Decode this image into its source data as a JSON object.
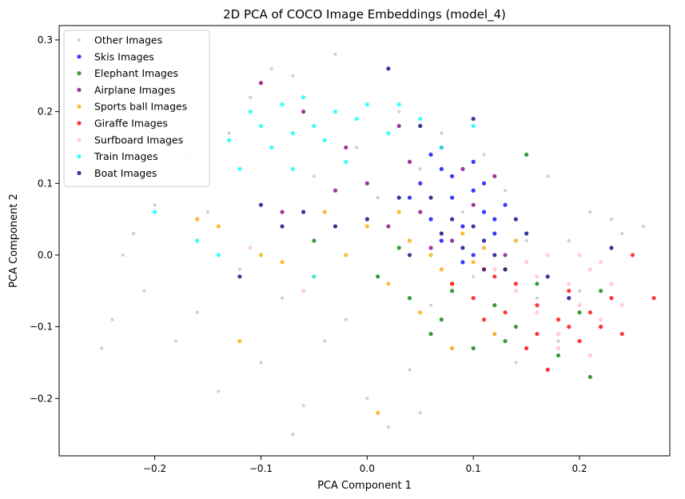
{
  "chart_data": {
    "type": "scatter",
    "title": "2D PCA of COCO Image Embeddings (model_4)",
    "xlabel": "PCA Component 1",
    "ylabel": "PCA Component 2",
    "xlim": [
      -0.29,
      0.285
    ],
    "ylim": [
      -0.28,
      0.32
    ],
    "x_ticks": [
      -0.2,
      -0.1,
      0.0,
      0.1,
      0.2
    ],
    "y_ticks": [
      -0.2,
      -0.1,
      0.0,
      0.1,
      0.2,
      0.3
    ],
    "x_tick_labels": [
      "−0.2",
      "−0.1",
      "0.0",
      "0.1",
      "0.2"
    ],
    "y_tick_labels": [
      "−0.2",
      "−0.1",
      "0.0",
      "0.1",
      "0.2",
      "0.3"
    ],
    "grid": false,
    "legend_position": "top-left",
    "series": [
      {
        "name": "Other Images",
        "color": "#a9a9a9",
        "points": [
          [
            -0.25,
            -0.13
          ],
          [
            -0.24,
            -0.09
          ],
          [
            -0.23,
            0.0
          ],
          [
            -0.22,
            0.03
          ],
          [
            -0.21,
            -0.05
          ],
          [
            -0.2,
            0.07
          ],
          [
            -0.19,
            0.11
          ],
          [
            -0.18,
            -0.12
          ],
          [
            -0.17,
            0.14
          ],
          [
            -0.16,
            -0.08
          ],
          [
            -0.15,
            0.06
          ],
          [
            -0.14,
            -0.19
          ],
          [
            -0.13,
            0.17
          ],
          [
            -0.12,
            -0.02
          ],
          [
            -0.11,
            0.22
          ],
          [
            -0.1,
            -0.15
          ],
          [
            -0.09,
            0.26
          ],
          [
            -0.08,
            -0.06
          ],
          [
            -0.07,
            0.25
          ],
          [
            -0.06,
            -0.21
          ],
          [
            -0.05,
            0.11
          ],
          [
            -0.04,
            -0.12
          ],
          [
            -0.03,
            0.04
          ],
          [
            -0.02,
            -0.09
          ],
          [
            -0.01,
            0.15
          ],
          [
            0.0,
            -0.2
          ],
          [
            0.01,
            0.08
          ],
          [
            0.02,
            -0.24
          ],
          [
            0.03,
            0.2
          ],
          [
            0.04,
            -0.16
          ],
          [
            0.05,
            0.12
          ],
          [
            0.06,
            -0.07
          ],
          [
            0.07,
            0.17
          ],
          [
            0.08,
            -0.13
          ],
          [
            0.09,
            0.06
          ],
          [
            0.1,
            -0.03
          ],
          [
            0.11,
            0.14
          ],
          [
            0.12,
            -0.11
          ],
          [
            0.13,
            0.09
          ],
          [
            0.14,
            -0.15
          ],
          [
            0.15,
            0.02
          ],
          [
            0.16,
            -0.06
          ],
          [
            0.17,
            0.11
          ],
          [
            0.18,
            -0.12
          ],
          [
            0.19,
            0.02
          ],
          [
            0.2,
            -0.05
          ],
          [
            0.21,
            0.06
          ],
          [
            0.22,
            -0.1
          ],
          [
            0.23,
            0.05
          ],
          [
            0.24,
            0.03
          ],
          [
            0.26,
            0.04
          ],
          [
            -0.07,
            -0.25
          ],
          [
            -0.03,
            0.28
          ],
          [
            0.05,
            -0.22
          ]
        ]
      },
      {
        "name": "Skis Images",
        "color": "#0000ff",
        "points": [
          [
            0.05,
            0.1
          ],
          [
            0.06,
            0.05
          ],
          [
            0.07,
            0.02
          ],
          [
            0.08,
            0.08
          ],
          [
            0.09,
            0.04
          ],
          [
            0.1,
            0.0
          ],
          [
            0.11,
            0.06
          ],
          [
            0.12,
            0.03
          ],
          [
            0.08,
            0.11
          ],
          [
            0.1,
            0.09
          ],
          [
            0.13,
            0.07
          ],
          [
            0.07,
            0.12
          ],
          [
            0.09,
            -0.01
          ],
          [
            0.11,
            0.1
          ],
          [
            0.06,
            0.14
          ],
          [
            0.12,
            0.05
          ],
          [
            0.04,
            0.08
          ],
          [
            0.1,
            0.13
          ]
        ]
      },
      {
        "name": "Elephant Images",
        "color": "#008000",
        "points": [
          [
            0.01,
            -0.03
          ],
          [
            0.04,
            -0.06
          ],
          [
            0.07,
            -0.09
          ],
          [
            0.08,
            -0.05
          ],
          [
            0.1,
            -0.13
          ],
          [
            0.12,
            -0.07
          ],
          [
            0.14,
            -0.1
          ],
          [
            0.16,
            -0.04
          ],
          [
            0.18,
            -0.14
          ],
          [
            0.2,
            -0.08
          ],
          [
            0.21,
            -0.17
          ],
          [
            0.15,
            0.14
          ],
          [
            -0.05,
            0.02
          ],
          [
            0.03,
            0.01
          ],
          [
            0.13,
            -0.12
          ],
          [
            0.22,
            -0.05
          ],
          [
            0.11,
            -0.02
          ],
          [
            0.06,
            -0.11
          ]
        ]
      },
      {
        "name": "Airplane Images",
        "color": "#800080",
        "points": [
          [
            -0.1,
            0.24
          ],
          [
            -0.06,
            0.2
          ],
          [
            -0.02,
            0.15
          ],
          [
            0.0,
            0.1
          ],
          [
            0.03,
            0.18
          ],
          [
            0.05,
            0.06
          ],
          [
            0.07,
            0.15
          ],
          [
            0.08,
            0.02
          ],
          [
            0.1,
            0.07
          ],
          [
            0.12,
            0.11
          ],
          [
            0.02,
            0.04
          ],
          [
            -0.03,
            0.09
          ],
          [
            0.06,
            0.01
          ],
          [
            0.11,
            -0.02
          ],
          [
            0.13,
            0.0
          ],
          [
            -0.08,
            0.06
          ],
          [
            0.09,
            0.12
          ],
          [
            0.04,
            0.13
          ]
        ]
      },
      {
        "name": "Sports ball Images",
        "color": "#ffa500",
        "points": [
          [
            -0.16,
            0.05
          ],
          [
            -0.14,
            0.04
          ],
          [
            -0.12,
            -0.12
          ],
          [
            -0.1,
            0.0
          ],
          [
            -0.08,
            -0.01
          ],
          [
            -0.05,
            -0.03
          ],
          [
            -0.02,
            0.0
          ],
          [
            0.0,
            0.04
          ],
          [
            0.02,
            -0.04
          ],
          [
            0.04,
            0.02
          ],
          [
            0.05,
            -0.08
          ],
          [
            0.06,
            0.0
          ],
          [
            0.08,
            -0.04
          ],
          [
            0.09,
            0.03
          ],
          [
            0.1,
            -0.01
          ],
          [
            0.11,
            0.01
          ],
          [
            0.13,
            -0.02
          ],
          [
            0.01,
            -0.22
          ],
          [
            0.08,
            -0.13
          ],
          [
            0.12,
            -0.11
          ],
          [
            -0.04,
            0.06
          ],
          [
            0.03,
            0.06
          ],
          [
            0.07,
            -0.02
          ],
          [
            0.14,
            0.02
          ]
        ]
      },
      {
        "name": "Giraffe Images",
        "color": "#ff0000",
        "points": [
          [
            0.08,
            -0.04
          ],
          [
            0.1,
            -0.06
          ],
          [
            0.12,
            -0.03
          ],
          [
            0.13,
            -0.08
          ],
          [
            0.14,
            -0.04
          ],
          [
            0.15,
            -0.13
          ],
          [
            0.16,
            -0.07
          ],
          [
            0.17,
            -0.16
          ],
          [
            0.18,
            -0.09
          ],
          [
            0.19,
            -0.05
          ],
          [
            0.2,
            -0.12
          ],
          [
            0.21,
            -0.08
          ],
          [
            0.22,
            -0.1
          ],
          [
            0.23,
            -0.06
          ],
          [
            0.24,
            -0.11
          ],
          [
            0.25,
            0.0
          ],
          [
            0.27,
            -0.06
          ],
          [
            0.11,
            -0.09
          ],
          [
            0.16,
            -0.11
          ],
          [
            0.19,
            -0.1
          ]
        ]
      },
      {
        "name": "Surfboard Images",
        "color": "#ffc0cb",
        "points": [
          [
            -0.11,
            0.01
          ],
          [
            -0.06,
            -0.05
          ],
          [
            0.12,
            -0.02
          ],
          [
            0.14,
            -0.05
          ],
          [
            0.15,
            -0.01
          ],
          [
            0.16,
            -0.08
          ],
          [
            0.17,
            0.0
          ],
          [
            0.18,
            -0.11
          ],
          [
            0.19,
            -0.04
          ],
          [
            0.2,
            -0.07
          ],
          [
            0.21,
            -0.02
          ],
          [
            0.22,
            -0.09
          ],
          [
            0.23,
            -0.04
          ],
          [
            0.24,
            -0.07
          ],
          [
            0.21,
            -0.14
          ],
          [
            0.18,
            -0.13
          ],
          [
            0.16,
            -0.03
          ],
          [
            0.2,
            0.0
          ],
          [
            0.22,
            -0.01
          ]
        ]
      },
      {
        "name": "Train Images",
        "color": "#00ffff",
        "points": [
          [
            -0.2,
            0.06
          ],
          [
            -0.16,
            0.02
          ],
          [
            -0.13,
            0.16
          ],
          [
            -0.12,
            0.12
          ],
          [
            -0.11,
            0.2
          ],
          [
            -0.1,
            0.18
          ],
          [
            -0.09,
            0.15
          ],
          [
            -0.08,
            0.21
          ],
          [
            -0.07,
            0.17
          ],
          [
            -0.06,
            0.22
          ],
          [
            -0.05,
            0.18
          ],
          [
            -0.04,
            0.16
          ],
          [
            -0.03,
            0.2
          ],
          [
            -0.02,
            0.13
          ],
          [
            -0.01,
            0.19
          ],
          [
            0.0,
            0.21
          ],
          [
            0.02,
            0.17
          ],
          [
            0.03,
            0.21
          ],
          [
            0.05,
            0.19
          ],
          [
            0.07,
            0.15
          ],
          [
            0.1,
            0.18
          ],
          [
            -0.05,
            -0.03
          ],
          [
            -0.14,
            -0.0
          ],
          [
            -0.07,
            0.12
          ]
        ]
      },
      {
        "name": "Boat Images",
        "color": "#000080",
        "points": [
          [
            -0.12,
            -0.03
          ],
          [
            -0.08,
            0.04
          ],
          [
            -0.06,
            0.06
          ],
          [
            -0.03,
            0.04
          ],
          [
            0.0,
            0.05
          ],
          [
            0.02,
            0.26
          ],
          [
            0.03,
            0.08
          ],
          [
            0.04,
            0.0
          ],
          [
            0.06,
            0.08
          ],
          [
            0.07,
            0.03
          ],
          [
            0.08,
            0.05
          ],
          [
            0.09,
            0.01
          ],
          [
            0.1,
            0.04
          ],
          [
            0.11,
            0.02
          ],
          [
            0.12,
            0.0
          ],
          [
            0.13,
            -0.02
          ],
          [
            0.15,
            0.03
          ],
          [
            0.17,
            -0.03
          ],
          [
            0.19,
            -0.06
          ],
          [
            0.23,
            0.01
          ],
          [
            0.05,
            0.18
          ],
          [
            -0.1,
            0.07
          ],
          [
            0.1,
            0.19
          ],
          [
            0.14,
            0.05
          ]
        ]
      }
    ]
  }
}
